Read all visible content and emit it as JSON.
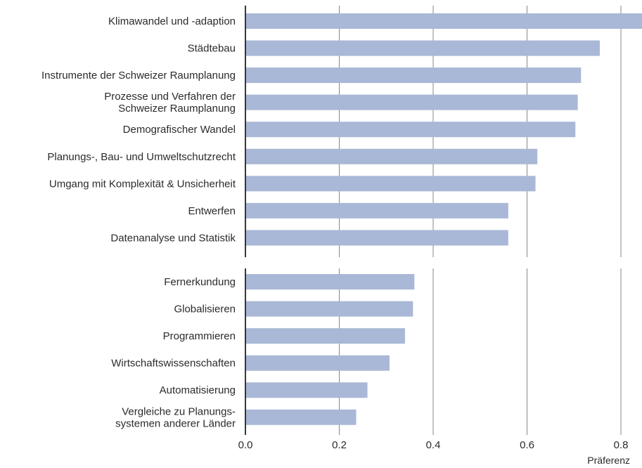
{
  "chart_data": {
    "type": "bar",
    "orientation": "horizontal",
    "xlabel": "Präferenz",
    "xlim": [
      0,
      0.85
    ],
    "xticks": [
      0.0,
      0.2,
      0.4,
      0.6,
      0.8
    ],
    "tick_labels": [
      "0.0",
      "0.2",
      "0.4",
      "0.6",
      "0.8"
    ],
    "grid": true,
    "bar_color": "#a9b8d6",
    "groups": [
      {
        "categories": [
          [
            "Klimawandel und -adaption"
          ],
          [
            "Städtebau"
          ],
          [
            "Instrumente der Schweizer Raumplanung"
          ],
          [
            "Prozesse und Verfahren der",
            "Schweizer Raumplanung"
          ],
          [
            "Demografischer Wandel"
          ],
          [
            "Planungs-, Bau- und Umweltschutzrecht"
          ],
          [
            "Umgang mit Komplexität & Unsicherheit"
          ],
          [
            "Entwerfen"
          ],
          [
            "Datenanalyse und Statistik"
          ]
        ],
        "values": [
          0.85,
          0.755,
          0.715,
          0.708,
          0.703,
          0.622,
          0.618,
          0.56,
          0.56
        ]
      },
      {
        "categories": [
          [
            "Fernerkundung"
          ],
          [
            "Globalisieren"
          ],
          [
            "Programmieren"
          ],
          [
            "Wirtschaftswissenschaften"
          ],
          [
            "Automatisierung"
          ],
          [
            "Vergleiche zu Planungs-",
            "systemen anderer Länder"
          ]
        ],
        "values": [
          0.36,
          0.357,
          0.34,
          0.307,
          0.26,
          0.236
        ]
      }
    ]
  }
}
